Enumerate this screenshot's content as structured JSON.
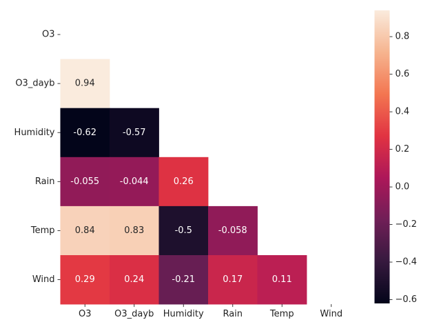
{
  "chart_data": {
    "type": "heatmap",
    "title": "",
    "xlabel": "",
    "ylabel": "",
    "variables": [
      "O3",
      "O3_dayb",
      "Humidity",
      "Rain",
      "Temp",
      "Wind"
    ],
    "mask": "upper-triangle-including-diagonal",
    "cells": [
      {
        "row": "O3_dayb",
        "col": "O3",
        "value": 0.94,
        "label": "0.94"
      },
      {
        "row": "Humidity",
        "col": "O3",
        "value": -0.62,
        "label": "-0.62"
      },
      {
        "row": "Humidity",
        "col": "O3_dayb",
        "value": -0.57,
        "label": "-0.57"
      },
      {
        "row": "Rain",
        "col": "O3",
        "value": -0.055,
        "label": "-0.055"
      },
      {
        "row": "Rain",
        "col": "O3_dayb",
        "value": -0.044,
        "label": "-0.044"
      },
      {
        "row": "Rain",
        "col": "Humidity",
        "value": 0.26,
        "label": "0.26"
      },
      {
        "row": "Temp",
        "col": "O3",
        "value": 0.84,
        "label": "0.84"
      },
      {
        "row": "Temp",
        "col": "O3_dayb",
        "value": 0.83,
        "label": "0.83"
      },
      {
        "row": "Temp",
        "col": "Humidity",
        "value": -0.5,
        "label": "-0.5"
      },
      {
        "row": "Temp",
        "col": "Rain",
        "value": -0.058,
        "label": "-0.058"
      },
      {
        "row": "Wind",
        "col": "O3",
        "value": 0.29,
        "label": "0.29"
      },
      {
        "row": "Wind",
        "col": "O3_dayb",
        "value": 0.24,
        "label": "0.24"
      },
      {
        "row": "Wind",
        "col": "Humidity",
        "value": -0.21,
        "label": "-0.21"
      },
      {
        "row": "Wind",
        "col": "Rain",
        "value": 0.17,
        "label": "0.17"
      },
      {
        "row": "Wind",
        "col": "Temp",
        "value": 0.11,
        "label": "0.11"
      }
    ],
    "colorbar": {
      "vmin": -0.62,
      "vmax": 0.94,
      "ticks": [
        -0.6,
        -0.4,
        -0.2,
        0.0,
        0.2,
        0.4,
        0.6,
        0.8
      ],
      "tick_labels": [
        "−0.6",
        "−0.4",
        "−0.2",
        "0.0",
        "0.2",
        "0.4",
        "0.6",
        "0.8"
      ]
    },
    "colormap": {
      "name": "rocket",
      "stops": [
        "#03051a",
        "#36193e",
        "#701f57",
        "#ad1759",
        "#e13342",
        "#f37651",
        "#f6b48f",
        "#faebdd"
      ]
    },
    "grid": false,
    "legend": "colorbar-right"
  }
}
